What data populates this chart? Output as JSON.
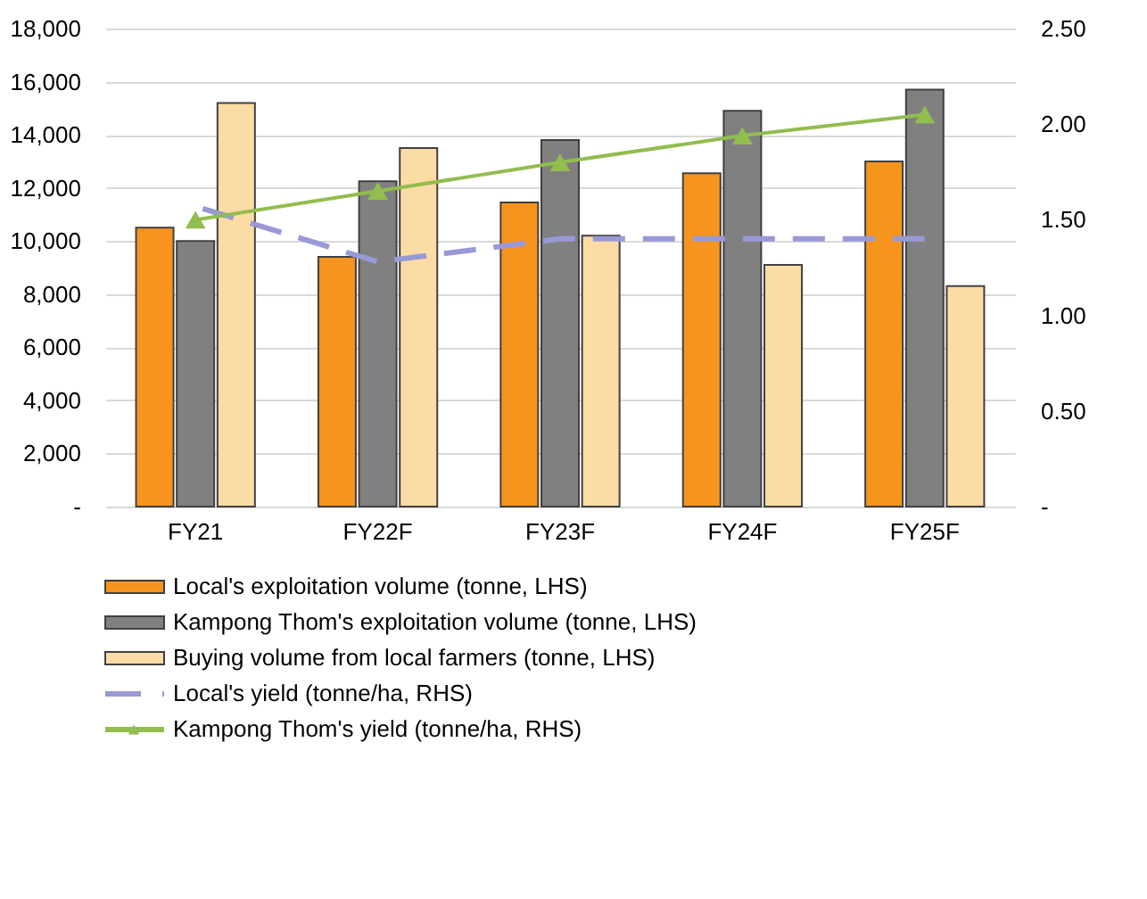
{
  "chart_data": {
    "type": "bar",
    "categories": [
      "FY21",
      "FY22F",
      "FY23F",
      "FY24F",
      "FY25F"
    ],
    "series": [
      {
        "name": "Local's exploitation volume (tonne, LHS)",
        "color": "#f7941d",
        "values": [
          10500,
          9400,
          11450,
          12550,
          13000
        ]
      },
      {
        "name": "Kampong Thom's exploitation volume (tonne, LHS)",
        "color": "#808080",
        "values": [
          10000,
          12250,
          13800,
          14900,
          15700
        ]
      },
      {
        "name": "Buying volume from local farmers (tonne, LHS)",
        "color": "#fcdca5",
        "values": [
          15200,
          13500,
          10200,
          9100,
          8300
        ]
      },
      {
        "name": "Local's yield (tonne/ha, RHS)",
        "type": "line",
        "axis": "y2",
        "line_style": "dashed",
        "marker": "none",
        "color": "#9999d6",
        "values": [
          1.57,
          1.28,
          1.4,
          1.4,
          1.4
        ]
      },
      {
        "name": "Kampong Thom's yield (tonne/ha, RHS)",
        "type": "line",
        "axis": "y2",
        "line_style": "solid",
        "marker": "triangle",
        "color": "#92bd4f",
        "values": [
          1.5,
          1.65,
          1.8,
          1.94,
          2.05
        ]
      }
    ],
    "ylim": [
      0,
      18000
    ],
    "yticks": [
      {
        "value": 0,
        "label": "-"
      },
      {
        "value": 2000,
        "label": "2,000"
      },
      {
        "value": 4000,
        "label": "4,000"
      },
      {
        "value": 6000,
        "label": "6,000"
      },
      {
        "value": 8000,
        "label": "8,000"
      },
      {
        "value": 10000,
        "label": "10,000"
      },
      {
        "value": 12000,
        "label": "12,000"
      },
      {
        "value": 14000,
        "label": "14,000"
      },
      {
        "value": 16000,
        "label": "16,000"
      },
      {
        "value": 18000,
        "label": "18,000"
      }
    ],
    "y2lim": [
      0,
      2.5
    ],
    "y2ticks": [
      {
        "value": 0,
        "label": "-"
      },
      {
        "value": 0.5,
        "label": "0.50"
      },
      {
        "value": 1,
        "label": "1.00"
      },
      {
        "value": 1.5,
        "label": "1.50"
      },
      {
        "value": 2,
        "label": "2.00"
      },
      {
        "value": 2.5,
        "label": "2.50"
      }
    ],
    "grid": "y",
    "legend": "bottom"
  }
}
